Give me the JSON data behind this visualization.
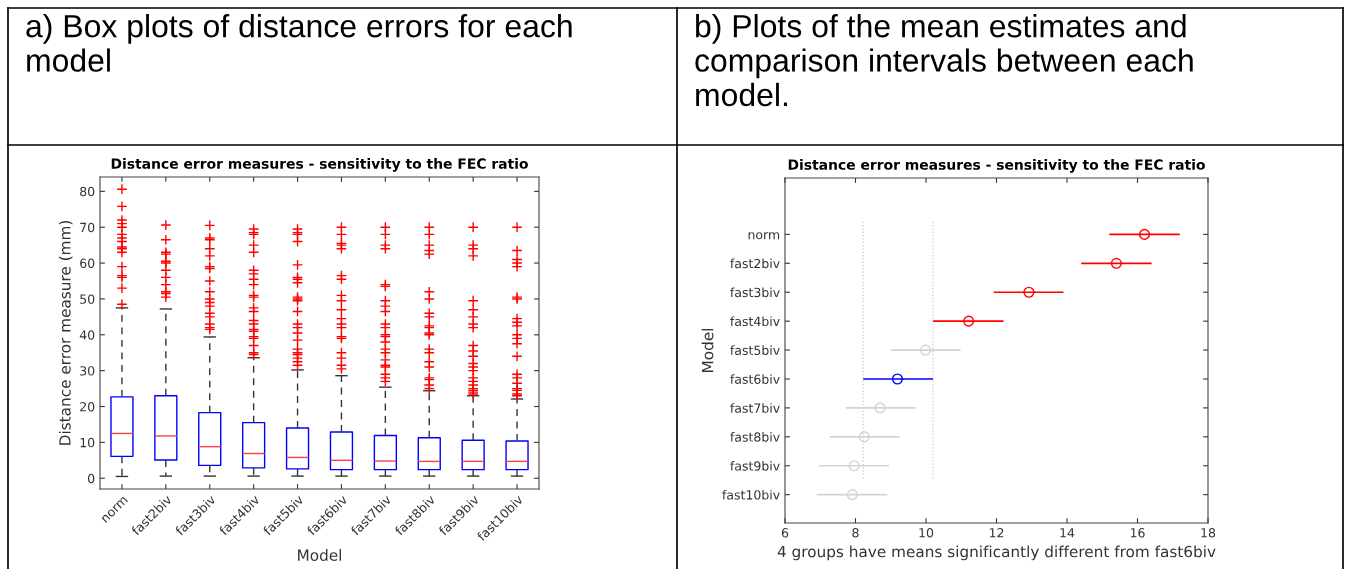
{
  "chart_data": [
    {
      "type": "box",
      "title": "Distance error measures - sensitivity to the FEC ratio",
      "xlabel": "Model",
      "ylabel": "Distance error measure (mm)",
      "annotations": [
        "a) Box plots of distance errors for each model"
      ],
      "categories": [
        "norm",
        "fast2biv",
        "fast3biv",
        "fast4biv",
        "fast5biv",
        "fast6biv",
        "fast7biv",
        "fast8biv",
        "fast9biv",
        "fast10biv"
      ],
      "ylim": [
        -3,
        84
      ],
      "yticks": [
        0,
        10,
        20,
        30,
        40,
        50,
        60,
        70,
        80
      ],
      "grid": false,
      "series": [
        {
          "color": "#0000ff",
          "boxes": [
            {
              "low": 0.5,
              "q1": 6.1,
              "median": 12.5,
              "q3": 22.7,
              "high": 47.5,
              "outliers": [
                80.6,
                75.8,
                72,
                71,
                70,
                68,
                67,
                66,
                64.5,
                64,
                63,
                59,
                56.5,
                56,
                53,
                48.5
              ]
            },
            {
              "low": 0.6,
              "q1": 5.1,
              "median": 11.8,
              "q3": 23,
              "high": 47.2,
              "outliers": [
                70.6,
                66.5,
                63,
                62.5,
                60.5,
                60,
                58,
                56,
                54,
                52,
                51.5,
                50.5
              ]
            },
            {
              "low": 0.6,
              "q1": 3.6,
              "median": 8.8,
              "q3": 18.3,
              "high": 39.4,
              "outliers": [
                70.5,
                67,
                66.5,
                64,
                62,
                59,
                58.5,
                55,
                52,
                50,
                49,
                48,
                46,
                45,
                43,
                42,
                41.5
              ]
            },
            {
              "low": 0.6,
              "q1": 2.9,
              "median": 6.9,
              "q3": 15.5,
              "high": 33.6,
              "outliers": [
                69.5,
                68.5,
                68,
                65,
                63,
                58,
                57,
                55.5,
                54,
                51,
                50.5,
                47.5,
                46.5,
                44,
                43,
                41.5,
                41,
                39.5,
                39,
                37,
                35,
                34.5
              ]
            },
            {
              "low": 0.6,
              "q1": 2.6,
              "median": 5.8,
              "q3": 14,
              "high": 30.2,
              "outliers": [
                69.5,
                68.5,
                68,
                66,
                59.5,
                56,
                55.5,
                54.5,
                50.5,
                50,
                49.5,
                46.5,
                43,
                42,
                40.5,
                38.5,
                36,
                35,
                34.5,
                33.5,
                32.5,
                31.5
              ]
            },
            {
              "low": 0.6,
              "q1": 2.4,
              "median": 5,
              "q3": 12.9,
              "high": 28.6,
              "outliers": [
                70,
                68,
                65.5,
                65,
                64,
                56.5,
                55.5,
                51,
                49.5,
                47,
                44.5,
                43,
                42,
                39.5,
                39,
                35,
                33.5,
                31.5,
                30.5
              ]
            },
            {
              "low": 0.6,
              "q1": 2.4,
              "median": 4.8,
              "q3": 11.9,
              "high": 25.4,
              "outliers": [
                70,
                68,
                65,
                64,
                54,
                53.5,
                49.5,
                48,
                46.5,
                43,
                42,
                40,
                39.5,
                38,
                36,
                35,
                33,
                31.5,
                31,
                29,
                28,
                27
              ]
            },
            {
              "low": 0.6,
              "q1": 2.4,
              "median": 4.7,
              "q3": 11.3,
              "high": 24.4,
              "outliers": [
                70,
                68,
                65,
                63.5,
                62.5,
                52,
                50,
                46,
                45,
                42.5,
                42,
                40.5,
                40,
                36,
                35,
                32.5,
                31,
                28,
                27.5,
                26,
                25
              ]
            },
            {
              "low": 0.6,
              "q1": 2.4,
              "median": 4.7,
              "q3": 10.6,
              "high": 23,
              "outliers": [
                70,
                65,
                64,
                62,
                49.5,
                47,
                45,
                43,
                42,
                37,
                35.5,
                34,
                32,
                31,
                30,
                28,
                27,
                26,
                25,
                24.5,
                24,
                23.5
              ]
            },
            {
              "low": 0.6,
              "q1": 2.4,
              "median": 4.7,
              "q3": 10.4,
              "high": 22.1,
              "outliers": [
                70,
                63.5,
                61,
                60,
                59,
                50.5,
                50,
                44.5,
                43.5,
                42.5,
                40,
                39,
                37.5,
                34,
                29,
                28,
                26.5,
                25,
                24.5,
                23.5,
                23
              ]
            }
          ]
        }
      ]
    },
    {
      "type": "scatter",
      "orientation": "horizontal",
      "title": "Distance error measures - sensitivity to the FEC ratio",
      "xlabel": "4 groups have means significantly different from fast6biv",
      "ylabel": "Model",
      "annotations": [
        "b) Plots of the mean estimates and comparison intervals between each model."
      ],
      "categories": [
        "norm",
        "fast2biv",
        "fast3biv",
        "fast4biv",
        "fast5biv",
        "fast6biv",
        "fast7biv",
        "fast8biv",
        "fast9biv",
        "fast10biv"
      ],
      "xlim": [
        6,
        18
      ],
      "xticks": [
        6,
        8,
        10,
        12,
        14,
        16,
        18
      ],
      "grid": false,
      "marker": "circle",
      "values": [
        16.2,
        15.4,
        12.92,
        11.21,
        9.99,
        9.19,
        8.7,
        8.25,
        7.96,
        7.91
      ],
      "errors": [
        [
          15.2,
          17.2
        ],
        [
          14.4,
          16.4
        ],
        [
          11.92,
          13.9
        ],
        [
          10.2,
          12.2
        ],
        [
          9.0,
          10.98
        ],
        [
          8.22,
          10.2
        ],
        [
          7.73,
          9.7
        ],
        [
          7.27,
          9.25
        ],
        [
          6.97,
          8.95
        ],
        [
          6.9,
          8.9
        ]
      ],
      "colors": [
        "#ff0000",
        "#ff0000",
        "#ff0000",
        "#ff0000",
        "#d3d3d3",
        "#0000ff",
        "#d3d3d3",
        "#d3d3d3",
        "#d3d3d3",
        "#d3d3d3"
      ],
      "ref_lines": [
        {
          "axis": "x",
          "value": 8.22,
          "color": "#c8c8c8",
          "line_style": "dotted"
        },
        {
          "axis": "x",
          "value": 10.2,
          "color": "#c8c8c8",
          "line_style": "dotted"
        }
      ]
    }
  ]
}
